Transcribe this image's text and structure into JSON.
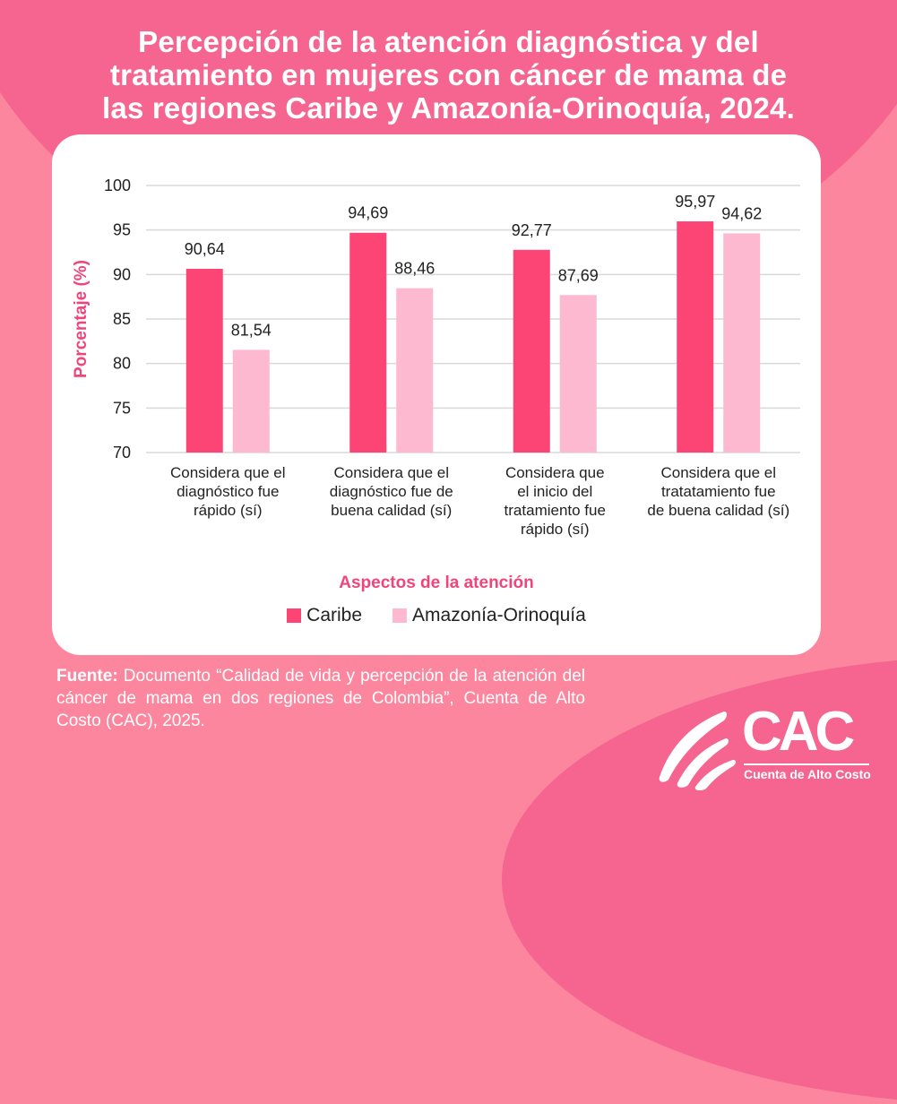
{
  "title": "Percepción de la atención diagnóstica y del tratamiento en mujeres con cáncer de mama de las regiones Caribe y Amazonía-Orinoquía, 2024.",
  "colors": {
    "caribe": "#fc4575",
    "amazonia": "#fdb9cf",
    "axis_title": "#f0457a",
    "grid": "#d9d9d9"
  },
  "chart_data": {
    "type": "bar",
    "title": "Percepción de la atención diagnóstica y del tratamiento en mujeres con cáncer de mama de las regiones Caribe y Amazonía-Orinoquía, 2024.",
    "xlabel": "Aspectos de la atención",
    "ylabel": "Porcentaje (%)",
    "ylim": [
      70,
      100
    ],
    "yticks": [
      "70",
      "75",
      "80",
      "85",
      "90",
      "95",
      "100"
    ],
    "grid": true,
    "legend_position": "bottom",
    "categories": [
      "Considera que el diagnóstico fue rápido (sí)",
      "Considera que el diagnóstico fue de buena calidad (sí)",
      "Considera que el inicio del tratamiento fue rápido (sí)",
      "Considera que el tratatamiento fue de buena calidad (sí)"
    ],
    "category_lines": [
      [
        "Considera que el",
        "diagnóstico fue",
        "rápido (sí)"
      ],
      [
        "Considera que el",
        "diagnóstico fue de",
        "buena calidad (sí)"
      ],
      [
        "Considera que",
        "el inicio del",
        "tratamiento fue",
        "rápido (sí)"
      ],
      [
        "Considera que el",
        "tratatamiento fue",
        "de buena calidad (sí)"
      ]
    ],
    "series": [
      {
        "name": "Caribe",
        "values": [
          90.64,
          94.69,
          92.77,
          95.97
        ],
        "labels": [
          "90,64",
          "94,69",
          "92,77",
          "95,97"
        ]
      },
      {
        "name": "Amazonía-Orinoquía",
        "values": [
          81.54,
          88.46,
          87.69,
          94.62
        ],
        "labels": [
          "81,54",
          "88,46",
          "87,69",
          "94,62"
        ]
      }
    ]
  },
  "source": {
    "label": "Fuente:",
    "text": " Documento “Calidad de vida y percepción de la atención del cáncer de mama en dos regiones de Colombia”, Cuenta de Alto Costo (CAC), 2025."
  },
  "logo": {
    "name": "CAC",
    "subtitle": "Cuenta de Alto Costo"
  }
}
